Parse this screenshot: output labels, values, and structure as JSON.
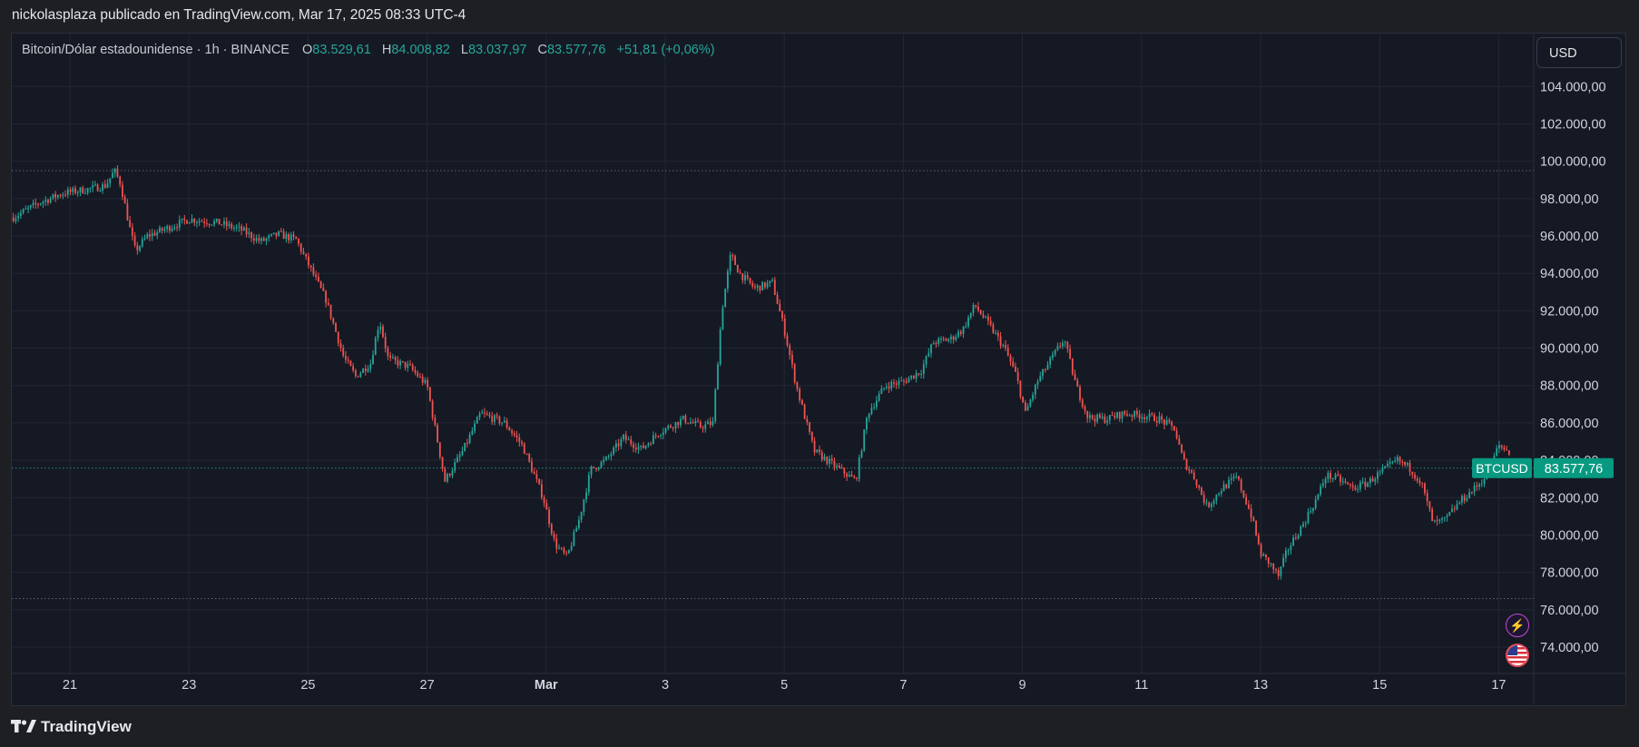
{
  "header": {
    "publisher_line": "nickolasplaza publicado en TradingView.com, Mar 17, 2025 08:33 UTC-4"
  },
  "legend": {
    "symbol_line": "Bitcoin/Dólar estadounidense · 1h · BINANCE",
    "open_key": "O",
    "open": "83.529,61",
    "high_key": "H",
    "high": "84.008,82",
    "low_key": "L",
    "low": "83.037,97",
    "close_key": "C",
    "close": "83.577,76",
    "change": "+51,81 (+0,06%)"
  },
  "currency_button": "USD",
  "price_tag": {
    "symbol": "BTCUSD",
    "price": "83.577,76"
  },
  "footer": {
    "brand": "TradingView"
  },
  "icons": {
    "bolt": "lightning-icon",
    "flag": "us-flag-icon",
    "logo": "tradingview-logo-icon"
  },
  "colors": {
    "up": "#26a69a",
    "down": "#ef5350",
    "background": "#151924",
    "grid": "#232733",
    "axis_text": "#d1d4dc",
    "accent_tag": "#089981"
  },
  "chart_data": {
    "type": "candlestick",
    "title": "Bitcoin/Dólar estadounidense · 1h · BINANCE",
    "y_axis": {
      "ticks": [
        74000,
        76000,
        78000,
        80000,
        82000,
        84000,
        86000,
        88000,
        90000,
        92000,
        94000,
        96000,
        98000,
        100000,
        102000,
        104000
      ],
      "tick_labels": [
        "74.000,00",
        "76.000,00",
        "78.000,00",
        "80.000,00",
        "82.000,00",
        "84.000,00",
        "86.000,00",
        "88.000,00",
        "90.000,00",
        "92.000,00",
        "94.000,00",
        "96.000,00",
        "98.000,00",
        "100.000,00",
        "102.000,00",
        "104.000,00"
      ],
      "ylim": [
        72000,
        106000
      ]
    },
    "x_axis": {
      "tick_labels": [
        "21",
        "23",
        "25",
        "27",
        "Mar",
        "3",
        "5",
        "7",
        "9",
        "11",
        "13",
        "15",
        "17"
      ],
      "tick_days": [
        1,
        3,
        5,
        7,
        9,
        11,
        13,
        15,
        17,
        19,
        21,
        23,
        25
      ],
      "day_origin": "2025-02-20",
      "xlim_days": [
        0.04,
        25.2
      ]
    },
    "reference_lines": [
      {
        "name": "recent_high",
        "value": 99500
      },
      {
        "name": "recent_low",
        "value": 76600
      },
      {
        "name": "last_price",
        "value": 83577.76
      }
    ],
    "candle_interval": "1h",
    "price_path": [
      [
        0.05,
        97000
      ],
      [
        0.5,
        97800
      ],
      [
        0.9,
        98300
      ],
      [
        1.3,
        98500
      ],
      [
        1.6,
        98700
      ],
      [
        1.75,
        99500
      ],
      [
        1.85,
        98800
      ],
      [
        2.0,
        96500
      ],
      [
        2.1,
        95200
      ],
      [
        2.3,
        96000
      ],
      [
        2.7,
        96500
      ],
      [
        3.0,
        96900
      ],
      [
        3.5,
        96700
      ],
      [
        3.9,
        96300
      ],
      [
        4.2,
        95700
      ],
      [
        4.5,
        96100
      ],
      [
        4.8,
        95800
      ],
      [
        5.05,
        94200
      ],
      [
        5.3,
        92600
      ],
      [
        5.6,
        89500
      ],
      [
        5.8,
        88500
      ],
      [
        6.05,
        89200
      ],
      [
        6.2,
        91500
      ],
      [
        6.35,
        89400
      ],
      [
        6.7,
        89000
      ],
      [
        7.0,
        88000
      ],
      [
        7.3,
        82900
      ],
      [
        7.6,
        84500
      ],
      [
        7.9,
        86500
      ],
      [
        8.3,
        86000
      ],
      [
        8.6,
        84800
      ],
      [
        8.95,
        82000
      ],
      [
        9.15,
        79500
      ],
      [
        9.35,
        78800
      ],
      [
        9.55,
        80800
      ],
      [
        9.75,
        83500
      ],
      [
        10.0,
        84000
      ],
      [
        10.3,
        85200
      ],
      [
        10.6,
        84600
      ],
      [
        10.9,
        85500
      ],
      [
        11.3,
        86200
      ],
      [
        11.6,
        85800
      ],
      [
        11.8,
        86000
      ],
      [
        11.95,
        92000
      ],
      [
        12.1,
        95000
      ],
      [
        12.25,
        94000
      ],
      [
        12.5,
        93200
      ],
      [
        12.8,
        93500
      ],
      [
        13.0,
        91000
      ],
      [
        13.2,
        88000
      ],
      [
        13.5,
        84500
      ],
      [
        13.8,
        83800
      ],
      [
        14.2,
        82900
      ],
      [
        14.4,
        86500
      ],
      [
        14.7,
        88000
      ],
      [
        15.0,
        88200
      ],
      [
        15.3,
        88800
      ],
      [
        15.5,
        90300
      ],
      [
        15.8,
        90500
      ],
      [
        16.0,
        91000
      ],
      [
        16.2,
        92300
      ],
      [
        16.45,
        91200
      ],
      [
        16.7,
        90000
      ],
      [
        16.9,
        88500
      ],
      [
        17.05,
        86500
      ],
      [
        17.25,
        88200
      ],
      [
        17.5,
        89500
      ],
      [
        17.7,
        90500
      ],
      [
        17.9,
        88000
      ],
      [
        18.1,
        86300
      ],
      [
        18.4,
        86200
      ],
      [
        18.7,
        86500
      ],
      [
        19.0,
        86400
      ],
      [
        19.3,
        86200
      ],
      [
        19.55,
        85700
      ],
      [
        19.7,
        84000
      ],
      [
        19.9,
        83000
      ],
      [
        20.1,
        81500
      ],
      [
        20.35,
        82500
      ],
      [
        20.6,
        83100
      ],
      [
        20.85,
        81000
      ],
      [
        21.0,
        79000
      ],
      [
        21.15,
        78500
      ],
      [
        21.3,
        77800
      ],
      [
        21.45,
        79200
      ],
      [
        21.7,
        80500
      ],
      [
        21.95,
        82000
      ],
      [
        22.1,
        83200
      ],
      [
        22.3,
        83000
      ],
      [
        22.55,
        82500
      ],
      [
        22.8,
        82800
      ],
      [
        23.0,
        83300
      ],
      [
        23.3,
        84000
      ],
      [
        23.5,
        83600
      ],
      [
        23.7,
        82800
      ],
      [
        23.9,
        80600
      ],
      [
        24.1,
        80800
      ],
      [
        24.35,
        81800
      ],
      [
        24.6,
        82500
      ],
      [
        24.8,
        83200
      ],
      [
        25.0,
        84800
      ],
      [
        25.2,
        84400
      ]
    ]
  }
}
